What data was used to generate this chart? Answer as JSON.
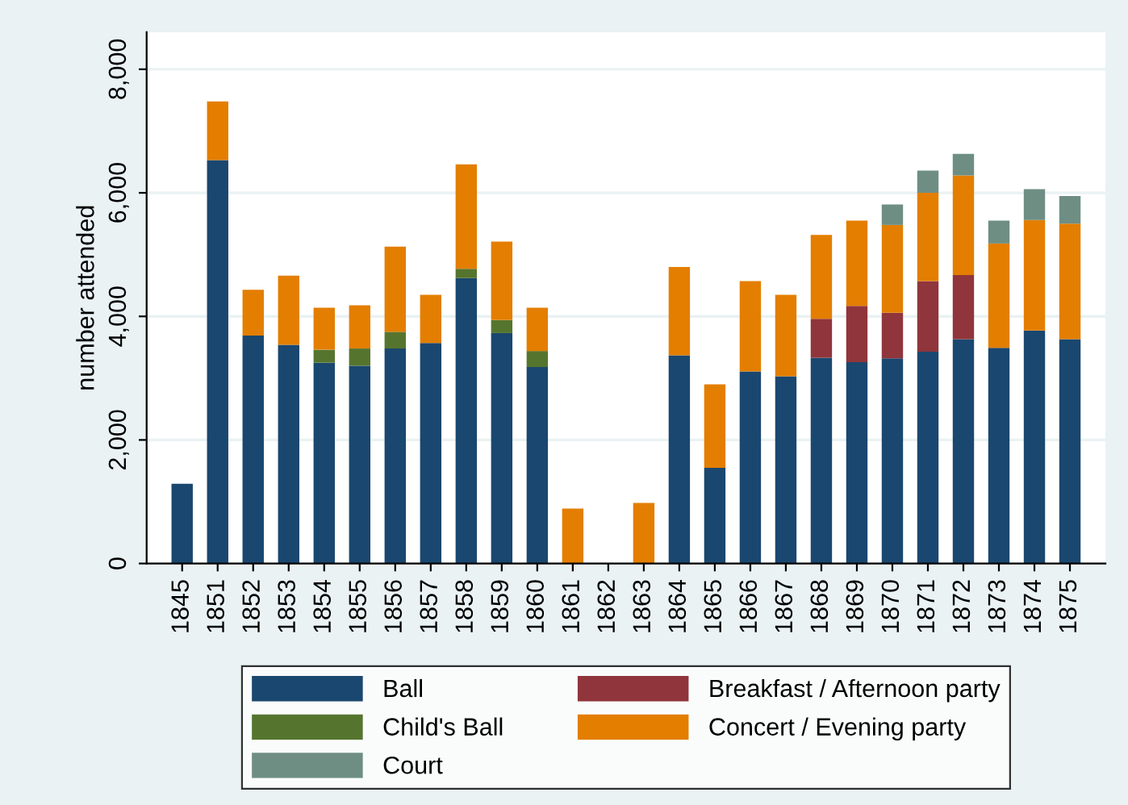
{
  "chart_data": {
    "type": "bar",
    "stacked": true,
    "ylabel": "number attended",
    "categories": [
      "1845",
      "1851",
      "1852",
      "1853",
      "1854",
      "1855",
      "1856",
      "1857",
      "1858",
      "1859",
      "1860",
      "1861",
      "1862",
      "1863",
      "1864",
      "1865",
      "1866",
      "1867",
      "1868",
      "1869",
      "1870",
      "1871",
      "1872",
      "1873",
      "1874",
      "1875"
    ],
    "series": [
      {
        "name": "Ball",
        "color": "#1a476f",
        "values": [
          1290,
          6530,
          3690,
          3540,
          3250,
          3200,
          3480,
          3570,
          4620,
          3730,
          3180,
          null,
          null,
          null,
          3370,
          1550,
          3110,
          3030,
          3330,
          3260,
          3320,
          3430,
          3630,
          3490,
          3770,
          3630
        ]
      },
      {
        "name": "Breakfast / Afternoon party",
        "color": "#90353b",
        "values": [
          null,
          null,
          null,
          null,
          null,
          null,
          null,
          null,
          null,
          null,
          null,
          null,
          null,
          null,
          null,
          null,
          null,
          null,
          630,
          910,
          740,
          1140,
          1040,
          null,
          null,
          null
        ]
      },
      {
        "name": "Child's Ball",
        "color": "#55752f",
        "values": [
          null,
          null,
          null,
          null,
          210,
          280,
          270,
          null,
          150,
          210,
          260,
          null,
          null,
          null,
          null,
          null,
          null,
          null,
          null,
          null,
          null,
          null,
          null,
          null,
          null,
          null
        ]
      },
      {
        "name": "Concert / Evening party",
        "color": "#e37e00",
        "values": [
          null,
          950,
          740,
          1120,
          680,
          700,
          1380,
          780,
          1690,
          1270,
          700,
          890,
          null,
          980,
          1430,
          1350,
          1460,
          1320,
          1360,
          1380,
          1420,
          1430,
          1610,
          1690,
          1790,
          1870
        ]
      },
      {
        "name": "Court",
        "color": "#6e8e84",
        "values": [
          null,
          null,
          null,
          null,
          null,
          null,
          null,
          null,
          null,
          null,
          null,
          null,
          null,
          null,
          null,
          null,
          null,
          null,
          null,
          null,
          330,
          360,
          350,
          370,
          500,
          450
        ]
      }
    ],
    "ylim": [
      0,
      8600
    ],
    "yticks": [
      0,
      {
        "value": 2000,
        "label": "2,000"
      },
      {
        "value": 4000,
        "label": "4,000"
      },
      {
        "value": 6000,
        "label": "6,000"
      },
      {
        "value": 8000,
        "label": "8,000"
      }
    ],
    "grid": "y",
    "legend": "bottom"
  }
}
